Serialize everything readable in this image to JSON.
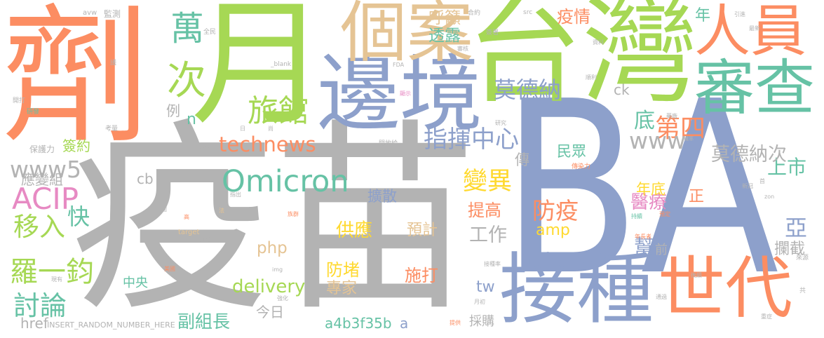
{
  "words": [
    {
      "text": "疫苗",
      "color": "#b3b3b3"
    },
    {
      "text": "BA",
      "color": "#8da0cb"
    },
    {
      "text": "劑",
      "color": "#fc8d62"
    },
    {
      "text": "月",
      "color": "#a6d854"
    },
    {
      "text": "台灣",
      "color": "#a6d854"
    },
    {
      "text": "邊境",
      "color": "#8da0cb"
    },
    {
      "text": "接種",
      "color": "#8da0cb"
    },
    {
      "text": "世代",
      "color": "#fc8d62"
    },
    {
      "text": "個案",
      "color": "#e5c494"
    },
    {
      "text": "審查",
      "color": "#66c2a5"
    },
    {
      "text": "人員",
      "color": "#fc8d62"
    },
    {
      "text": "次",
      "color": "#a6d854"
    },
    {
      "text": "萬",
      "color": "#66c2a5"
    },
    {
      "text": "Omicron",
      "color": "#66c2a5"
    },
    {
      "text": "旅館",
      "color": "#a6d854"
    },
    {
      "text": "ACIP",
      "color": "#e78ac3"
    },
    {
      "text": "羅一鈞",
      "color": "#a6d854"
    },
    {
      "text": "討論",
      "color": "#66c2a5"
    },
    {
      "text": "移入",
      "color": "#a6d854"
    },
    {
      "text": "第四",
      "color": "#fc8d62"
    },
    {
      "text": "變異",
      "color": "#ffd92f"
    },
    {
      "text": "指揮中心",
      "color": "#8da0cb"
    },
    {
      "text": "www",
      "color": "#b3b3b3"
    },
    {
      "text": "www5",
      "color": "#b3b3b3"
    },
    {
      "text": "防疫",
      "color": "#fc8d62"
    },
    {
      "text": "莫德納",
      "color": "#8da0cb"
    },
    {
      "text": "快",
      "color": "#66c2a5"
    },
    {
      "text": "亞",
      "color": "#8da0cb"
    },
    {
      "text": "底",
      "color": "#66c2a5"
    },
    {
      "text": "technews",
      "color": "#fc8d62"
    },
    {
      "text": "上市",
      "color": "#66c2a5"
    },
    {
      "text": "幫",
      "color": "#8da0cb"
    },
    {
      "text": "工作",
      "color": "#b3b3b3"
    },
    {
      "text": "莫德納次",
      "color": "#b3b3b3"
    },
    {
      "text": "供應",
      "color": "#ffd92f"
    },
    {
      "text": "醫療",
      "color": "#e78ac3"
    },
    {
      "text": "delivery",
      "color": "#a6d854"
    },
    {
      "text": "副組長",
      "color": "#66c2a5"
    },
    {
      "text": "提高",
      "color": "#fc8d62"
    },
    {
      "text": "施打",
      "color": "#fc8d62"
    },
    {
      "text": "防堵",
      "color": "#ffd92f"
    },
    {
      "text": "疫情",
      "color": "#fc8d62"
    },
    {
      "text": "呼籲",
      "color": "#e5c494"
    },
    {
      "text": "透露",
      "color": "#66c2a5"
    },
    {
      "text": "php",
      "color": "#e5c494"
    },
    {
      "text": "預計",
      "color": "#e5c494"
    },
    {
      "text": "專家",
      "color": "#e5c494"
    },
    {
      "text": "攔截",
      "color": "#b3b3b3"
    },
    {
      "text": "年",
      "color": "#66c2a5"
    },
    {
      "text": "正",
      "color": "#fc8d62"
    },
    {
      "text": "amp",
      "color": "#ffd92f"
    },
    {
      "text": "tw",
      "color": "#8da0cb"
    },
    {
      "text": "擴散",
      "color": "#8da0cb"
    },
    {
      "text": "傳",
      "color": "#b3b3b3"
    },
    {
      "text": "民眾",
      "color": "#66c2a5"
    },
    {
      "text": "年底",
      "color": "#ffd92f"
    },
    {
      "text": "簽約",
      "color": "#a6d854"
    },
    {
      "text": "應變組",
      "color": "#b3b3b3"
    },
    {
      "text": "今日",
      "color": "#b3b3b3"
    },
    {
      "text": "例",
      "color": "#b3b3b3"
    },
    {
      "text": "n",
      "color": "#66c2a5"
    },
    {
      "text": "cb",
      "color": "#b3b3b3"
    },
    {
      "text": "ck",
      "color": "#b3b3b3"
    },
    {
      "text": "href",
      "color": "#b3b3b3"
    },
    {
      "text": "a4b3f35b",
      "color": "#66c2a5"
    },
    {
      "text": "a",
      "color": "#8da0cb"
    },
    {
      "text": "中央",
      "color": "#66c2a5"
    },
    {
      "text": "前",
      "color": "#b3b3b3"
    },
    {
      "text": "採購",
      "color": "#b3b3b3"
    },
    {
      "text": "監測",
      "color": "#b3b3b3"
    },
    {
      "text": "保護力",
      "color": "#b3b3b3"
    },
    {
      "text": "INSERT_RANDOM_NUMBER_HERE",
      "color": "#b3b3b3"
    },
    {
      "text": "avw",
      "color": "#b3b3b3"
    },
    {
      "text": "開打",
      "color": "#b3b3b3"
    },
    {
      "text": "研發",
      "color": "#66c2a5"
    },
    {
      "text": "議",
      "color": "#b3b3b3"
    },
    {
      "text": "考量",
      "color": "#b3b3b3"
    },
    {
      "text": "全民",
      "color": "#b3b3b3"
    },
    {
      "text": "_blank",
      "color": "#b3b3b3"
    },
    {
      "text": "共有",
      "color": "#b3b3b3"
    },
    {
      "text": "日",
      "color": "#b3b3b3"
    },
    {
      "text": "尚",
      "color": "#b3b3b3"
    },
    {
      "text": "指出",
      "color": "#b3b3b3"
    },
    {
      "text": "圖",
      "color": "#b3b3b3"
    },
    {
      "text": "法",
      "color": "#e5c494"
    },
    {
      "text": "高",
      "color": "#fc8d62"
    },
    {
      "text": "target",
      "color": "#e5c494"
    },
    {
      "text": "到貨",
      "color": "#b3b3b3"
    },
    {
      "text": "族群",
      "color": "#fc8d62"
    },
    {
      "text": "美國",
      "color": "#fc8d62"
    },
    {
      "text": "現有",
      "color": "#b3b3b3"
    },
    {
      "text": "img",
      "color": "#b3b3b3"
    },
    {
      "text": "強化",
      "color": "#b3b3b3"
    },
    {
      "text": "FDA",
      "color": "#b3b3b3"
    },
    {
      "text": "顯示",
      "color": "#e78ac3"
    },
    {
      "text": "開放給",
      "color": "#b3b3b3"
    },
    {
      "text": "合約",
      "color": "#b3b3b3"
    },
    {
      "text": "簽署",
      "color": "#b3b3b3"
    },
    {
      "text": "審核",
      "color": "#b3b3b3"
    },
    {
      "text": "src",
      "color": "#b3b3b3"
    },
    {
      "text": "資料",
      "color": "#b3b3b3"
    },
    {
      "text": "順利",
      "color": "#b3b3b3"
    },
    {
      "text": "研究",
      "color": "#b3b3b3"
    },
    {
      "text": "傳染力",
      "color": "#fc8d62"
    },
    {
      "text": "接種率",
      "color": "#b3b3b3"
    },
    {
      "text": "月初",
      "color": "#b3b3b3"
    },
    {
      "text": "提供",
      "color": "#fc8d62"
    },
    {
      "text": "藥廠",
      "color": "#b3b3b3"
    },
    {
      "text": "機率",
      "color": "#b3b3b3"
    },
    {
      "text": "引進",
      "color": "#b3b3b3"
    },
    {
      "text": "最新",
      "color": "#b3b3b3"
    },
    {
      "text": "新冠",
      "color": "#b3b3b3"
    },
    {
      "text": "首",
      "color": "#b3b3b3"
    },
    {
      "text": "zon",
      "color": "#b3b3b3"
    },
    {
      "text": "持續",
      "color": "#66c2a5"
    },
    {
      "text": "預定",
      "color": "#fc8d62"
    },
    {
      "text": "年長者",
      "color": "#fc8d62"
    },
    {
      "text": "後續",
      "color": "#b3b3b3"
    },
    {
      "text": "通過",
      "color": "#b3b3b3"
    },
    {
      "text": "來源",
      "color": "#b3b3b3"
    },
    {
      "text": "共",
      "color": "#b3b3b3"
    },
    {
      "text": "重症",
      "color": "#b3b3b3"
    }
  ]
}
